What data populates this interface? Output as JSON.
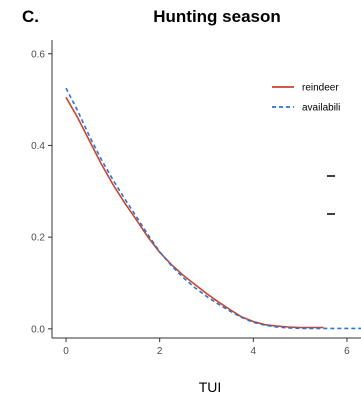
{
  "panel_label": "C.",
  "chart_data": {
    "type": "line",
    "title": "Hunting season",
    "xlabel": "TUI",
    "ylabel": "",
    "xlim": [
      -0.3,
      6.3
    ],
    "ylim": [
      -0.02,
      0.63
    ],
    "x_ticks": [
      0,
      2,
      4,
      6
    ],
    "y_ticks": [
      0.0,
      0.2,
      0.4,
      0.6
    ],
    "x_tick_labels": [
      "0",
      "2",
      "4",
      "6"
    ],
    "y_tick_labels": [
      "0.0",
      "0.2",
      "0.4",
      "0.6"
    ],
    "grid": false,
    "legend_position": "right",
    "series": [
      {
        "name": "reindeer",
        "color": "#c9452d",
        "style": "solid",
        "x": [
          0,
          0.25,
          0.5,
          0.75,
          1.0,
          1.25,
          1.5,
          1.75,
          2.0,
          2.25,
          2.5,
          2.75,
          3.0,
          3.25,
          3.5,
          3.75,
          4.0,
          4.25,
          4.5,
          4.75,
          5.0,
          5.25,
          5.5
        ],
        "y": [
          0.505,
          0.46,
          0.41,
          0.36,
          0.315,
          0.275,
          0.238,
          0.2,
          0.167,
          0.14,
          0.117,
          0.097,
          0.077,
          0.059,
          0.042,
          0.026,
          0.016,
          0.009,
          0.006,
          0.004,
          0.003,
          0.003,
          0.003
        ]
      },
      {
        "name": "availabili",
        "color": "#2f72d6",
        "style": "dashed",
        "x": [
          0,
          0.25,
          0.5,
          0.75,
          1.0,
          1.25,
          1.5,
          1.75,
          2.0,
          2.25,
          2.5,
          2.75,
          3.0,
          3.25,
          3.5,
          3.75,
          4.0,
          4.25,
          4.5,
          4.75,
          5.0,
          5.25,
          5.5,
          5.75,
          6.0,
          6.3
        ],
        "y": [
          0.525,
          0.475,
          0.42,
          0.37,
          0.325,
          0.284,
          0.245,
          0.205,
          0.168,
          0.138,
          0.112,
          0.09,
          0.071,
          0.054,
          0.039,
          0.025,
          0.014,
          0.008,
          0.004,
          0.002,
          0.001,
          0.001,
          0.001,
          0.001,
          0.001,
          0.001
        ]
      }
    ],
    "legend_entries": [
      "reindeer",
      "availabili"
    ]
  }
}
